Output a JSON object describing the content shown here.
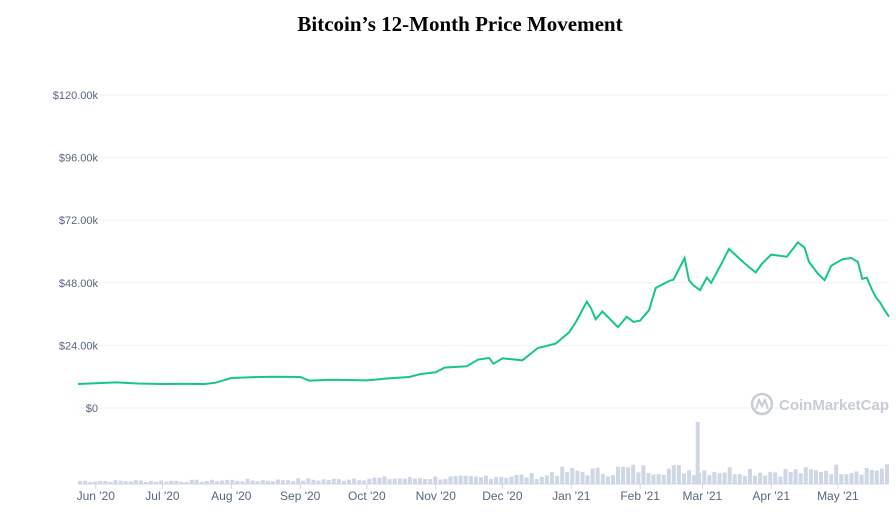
{
  "chart_data": {
    "type": "line",
    "title": "Bitcoin’s 12-Month Price Movement",
    "xlabel": "",
    "ylabel": "",
    "ylim": [
      0,
      120000
    ],
    "y_ticks": [
      "$0",
      "$24.00k",
      "$48.00k",
      "$72.00k",
      "$96.00k",
      "$120.00k"
    ],
    "y_tick_values": [
      0,
      24000,
      48000,
      72000,
      96000,
      120000
    ],
    "x_ticks": [
      "Jun '20",
      "Jul '20",
      "Aug '20",
      "Sep '20",
      "Oct '20",
      "Nov '20",
      "Dec '20",
      "Jan '21",
      "Feb '21",
      "Mar '21",
      "Apr '21",
      "May '21"
    ],
    "x_tick_dates": [
      "2020-06-01",
      "2020-07-01",
      "2020-08-01",
      "2020-09-01",
      "2020-10-01",
      "2020-11-01",
      "2020-12-01",
      "2021-01-01",
      "2021-02-01",
      "2021-03-01",
      "2021-04-01",
      "2021-05-01"
    ],
    "xlim": [
      "2020-05-24",
      "2021-05-24"
    ],
    "grid": true,
    "watermark": "CoinMarketCap",
    "colors": {
      "price_line": "#16c784",
      "volume_bars": "#cfd6e4",
      "grid": "#eff2f5"
    },
    "series": [
      {
        "points": [
          [
            "2020-05-24",
            9200
          ],
          [
            "2020-06-01",
            9500
          ],
          [
            "2020-06-10",
            9800
          ],
          [
            "2020-06-20",
            9400
          ],
          [
            "2020-07-01",
            9200
          ],
          [
            "2020-07-10",
            9250
          ],
          [
            "2020-07-20",
            9200
          ],
          [
            "2020-07-25",
            9700
          ],
          [
            "2020-08-01",
            11500
          ],
          [
            "2020-08-10",
            11800
          ],
          [
            "2020-08-20",
            12000
          ],
          [
            "2020-09-01",
            11900
          ],
          [
            "2020-09-05",
            10500
          ],
          [
            "2020-09-15",
            10800
          ],
          [
            "2020-09-25",
            10700
          ],
          [
            "2020-10-01",
            10600
          ],
          [
            "2020-10-10",
            11300
          ],
          [
            "2020-10-20",
            11900
          ],
          [
            "2020-10-25",
            13000
          ],
          [
            "2020-11-01",
            13700
          ],
          [
            "2020-11-05",
            15500
          ],
          [
            "2020-11-15",
            16000
          ],
          [
            "2020-11-20",
            18500
          ],
          [
            "2020-11-25",
            19200
          ],
          [
            "2020-11-27",
            17000
          ],
          [
            "2020-12-01",
            19000
          ],
          [
            "2020-12-10",
            18300
          ],
          [
            "2020-12-17",
            23000
          ],
          [
            "2020-12-25",
            24700
          ],
          [
            "2020-12-31",
            29000
          ],
          [
            "2021-01-03",
            32800
          ],
          [
            "2021-01-08",
            40800
          ],
          [
            "2021-01-10",
            38000
          ],
          [
            "2021-01-12",
            34000
          ],
          [
            "2021-01-15",
            37000
          ],
          [
            "2021-01-22",
            31000
          ],
          [
            "2021-01-26",
            35000
          ],
          [
            "2021-01-29",
            33000
          ],
          [
            "2021-02-01",
            33500
          ],
          [
            "2021-02-05",
            37500
          ],
          [
            "2021-02-08",
            46000
          ],
          [
            "2021-02-14",
            48700
          ],
          [
            "2021-02-16",
            49200
          ],
          [
            "2021-02-21",
            57500
          ],
          [
            "2021-02-23",
            49000
          ],
          [
            "2021-02-25",
            47000
          ],
          [
            "2021-02-28",
            45200
          ],
          [
            "2021-03-03",
            50000
          ],
          [
            "2021-03-05",
            48000
          ],
          [
            "2021-03-10",
            56000
          ],
          [
            "2021-03-13",
            61000
          ],
          [
            "2021-03-18",
            57000
          ],
          [
            "2021-03-22",
            54000
          ],
          [
            "2021-03-25",
            52000
          ],
          [
            "2021-03-28",
            55500
          ],
          [
            "2021-04-01",
            58800
          ],
          [
            "2021-04-08",
            58000
          ],
          [
            "2021-04-13",
            63500
          ],
          [
            "2021-04-16",
            61500
          ],
          [
            "2021-04-18",
            56000
          ],
          [
            "2021-04-22",
            51500
          ],
          [
            "2021-04-25",
            49000
          ],
          [
            "2021-04-28",
            54500
          ],
          [
            "2021-05-03",
            57000
          ],
          [
            "2021-05-07",
            57500
          ],
          [
            "2021-05-10",
            56000
          ],
          [
            "2021-05-12",
            49500
          ],
          [
            "2021-05-14",
            50000
          ],
          [
            "2021-05-16",
            46000
          ],
          [
            "2021-05-18",
            42500
          ],
          [
            "2021-05-20",
            40500
          ],
          [
            "2021-05-22",
            37500
          ],
          [
            "2021-05-24",
            35000
          ]
        ]
      }
    ],
    "volume": {
      "spike_date": "2021-02-26",
      "relative_levels": [
        0.05,
        0.05,
        0.06,
        0.07,
        0.09,
        0.1,
        0.13,
        0.2,
        0.24,
        0.22,
        0.2,
        0.24
      ],
      "spike_level": 1.0
    }
  }
}
